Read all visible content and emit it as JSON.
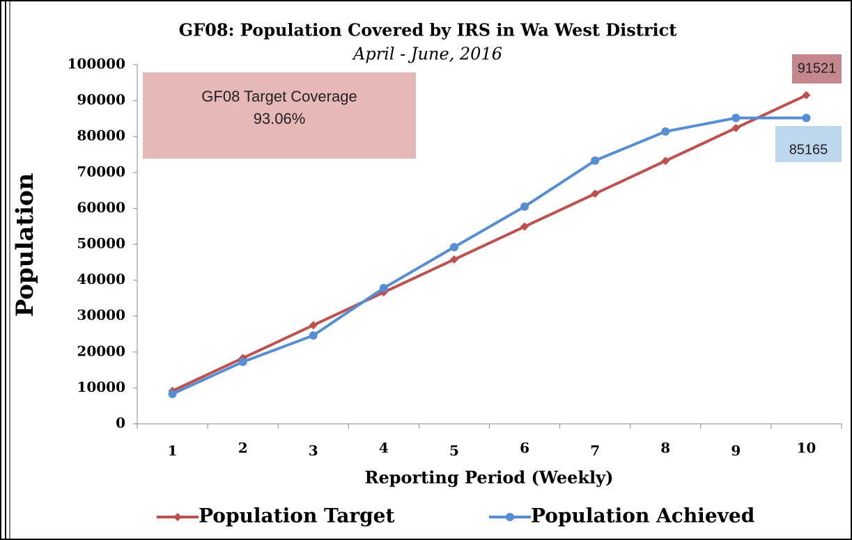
{
  "chart_data": {
    "type": "line",
    "title": "GF08: Population Covered by IRS in Wa West  District",
    "subtitle": "April - June, 2016",
    "x_label": "Reporting Period (Weekly)",
    "y_label": "Population",
    "annotation": {
      "title": "GF08 Target Coverage",
      "text": "93.06%"
    },
    "categories": [
      "1",
      "2",
      "3",
      "4",
      "5",
      "6",
      "7",
      "8",
      "9",
      "10"
    ],
    "series": [
      {
        "name": "Population Target",
        "color": "#c0504d",
        "label_color": "#c4878d",
        "values": [
          9152,
          18304,
          27456,
          36608,
          45760,
          54913,
          64065,
          73217,
          82369,
          91521
        ]
      },
      {
        "name": "Population Achieved",
        "color": "#558ed5",
        "label_color": "#bdd7ee",
        "values": [
          8300,
          17250,
          24600,
          37800,
          49200,
          60500,
          73300,
          81400,
          85165,
          85165
        ]
      }
    ],
    "ylim": [
      0,
      100000
    ],
    "yticks": [
      0,
      10000,
      20000,
      30000,
      40000,
      50000,
      60000,
      70000,
      80000,
      90000,
      100000
    ],
    "legend": "bottom"
  }
}
